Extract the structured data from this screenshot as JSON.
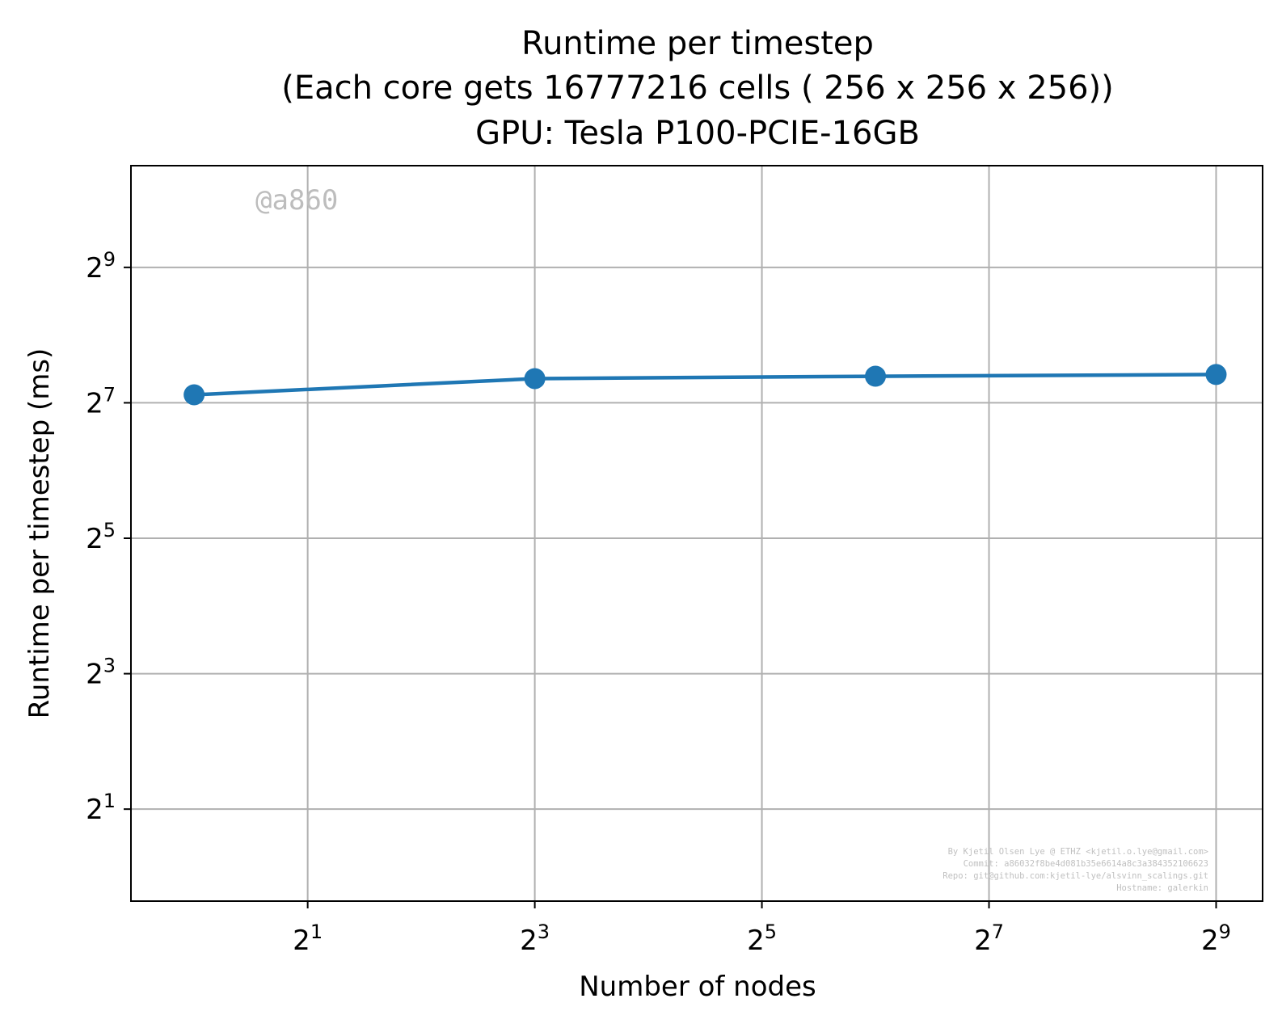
{
  "chart_data": {
    "type": "line",
    "title": [
      "Runtime per timestep",
      "(Each core gets 16777216 cells ( 256 x 256 x 256))",
      "GPU: Tesla P100-PCIE-16GB"
    ],
    "xlabel": "Number of nodes",
    "ylabel": "Runtime per timestep (ms)",
    "xscale": "log2",
    "yscale": "log2",
    "xlim": [
      0.68,
      680
    ],
    "ylim": [
      0.78,
      1450
    ],
    "xticks": [
      {
        "base": "2",
        "exp": "1",
        "value": 2
      },
      {
        "base": "2",
        "exp": "3",
        "value": 8
      },
      {
        "base": "2",
        "exp": "5",
        "value": 32
      },
      {
        "base": "2",
        "exp": "7",
        "value": 128
      },
      {
        "base": "2",
        "exp": "9",
        "value": 512
      }
    ],
    "yticks": [
      {
        "base": "2",
        "exp": "1",
        "value": 2
      },
      {
        "base": "2",
        "exp": "3",
        "value": 8
      },
      {
        "base": "2",
        "exp": "5",
        "value": 32
      },
      {
        "base": "2",
        "exp": "7",
        "value": 128
      },
      {
        "base": "2",
        "exp": "9",
        "value": 512
      }
    ],
    "grid": true,
    "series": [
      {
        "color": "#1f77b4",
        "x": [
          1,
          8,
          64,
          512
        ],
        "y": [
          139,
          164,
          168,
          171
        ]
      }
    ],
    "watermark": "@a860",
    "credits": [
      "By Kjetil Olsen Lye @ ETHZ <kjetil.o.lye@gmail.com>",
      "Commit: a86032f8be4d081b35e6614a8c3a384352106623",
      "Repo: git@github.com:kjetil-lye/alsvinn_scalings.git",
      "Hostname: galerkin"
    ]
  }
}
